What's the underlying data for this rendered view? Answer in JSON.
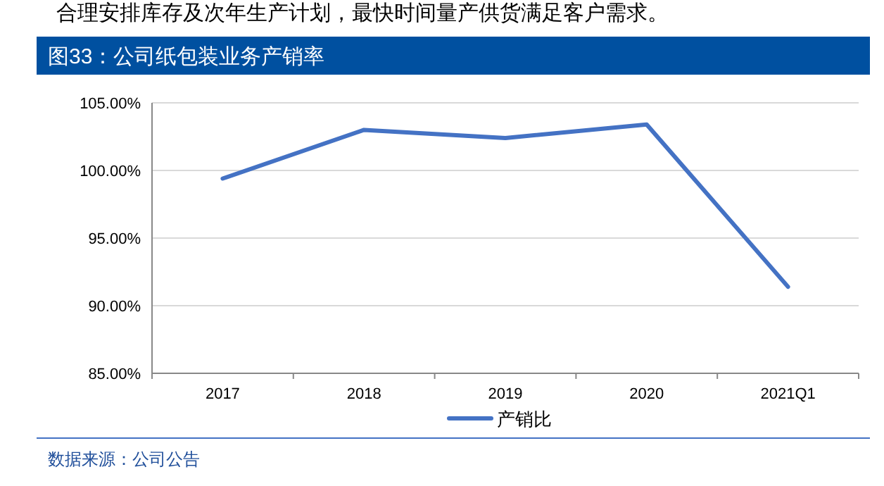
{
  "chart_data": {
    "type": "line",
    "title": "图33：公司纸包装业务产销率",
    "categories": [
      "2017",
      "2018",
      "2019",
      "2020",
      "2021Q1"
    ],
    "series": [
      {
        "name": "产销比",
        "color": "#4472c4",
        "values": [
          99.4,
          103.0,
          102.4,
          103.4,
          91.4
        ]
      }
    ],
    "ylim": [
      85,
      105
    ],
    "yticks": [
      {
        "value": 85,
        "label": "85.00%"
      },
      {
        "value": 90,
        "label": "90.00%"
      },
      {
        "value": 95,
        "label": "95.00%"
      },
      {
        "value": 100,
        "label": "100.00%"
      },
      {
        "value": 105,
        "label": "105.00%"
      }
    ],
    "grid": "y",
    "legend": "bottom",
    "marker": "none",
    "line_style": "solid",
    "annotations": [
      "合理安排库存及次年生产计划，最快时间量产供货满足客户需求。",
      "数据来源：公司公告"
    ]
  }
}
